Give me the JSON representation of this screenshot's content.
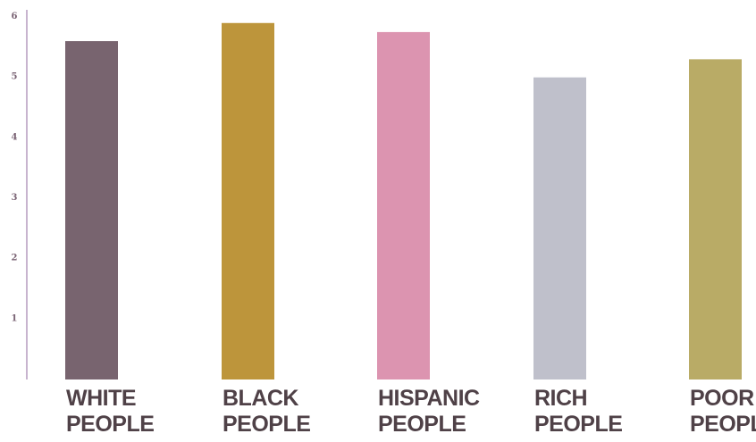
{
  "chart_data": {
    "type": "bar",
    "title": "",
    "xlabel": "",
    "ylabel": "",
    "ylim": [
      0,
      6
    ],
    "yticks": [
      1,
      2,
      3,
      4,
      5,
      6
    ],
    "grid": false,
    "categories": [
      [
        "WHITE",
        "PEOPLE"
      ],
      [
        "BLACK",
        "PEOPLE"
      ],
      [
        "HISPANIC",
        "PEOPLE"
      ],
      [
        "RICH",
        "PEOPLE"
      ],
      [
        "POOR",
        "PEOPLE"
      ]
    ],
    "values": [
      5.6,
      5.9,
      5.75,
      5.0,
      5.3
    ],
    "colors": [
      "#78646f",
      "#bd953b",
      "#dc94b0",
      "#bfc0cb",
      "#b9ab66"
    ],
    "axis_color": "#b59bbf",
    "tick_label_color": "#7a6374",
    "category_label_color": "#4f4147"
  }
}
